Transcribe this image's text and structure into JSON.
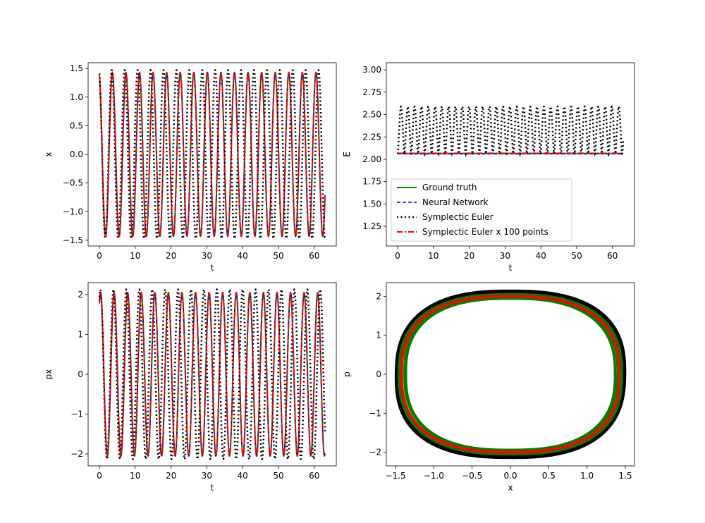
{
  "figure": {
    "background": "#ffffff"
  },
  "colors": {
    "ground_truth": "#008000",
    "neural_network": "#0000ff",
    "symplectic_euler": "#000000",
    "symplectic_euler_100": "#ff0000"
  },
  "chart_data": [
    {
      "id": "x-vs-t",
      "type": "line",
      "xlabel": "t",
      "ylabel": "x",
      "xlim": [
        -3.15,
        66.15
      ],
      "ylim": [
        -1.6,
        1.6
      ],
      "xticks": [
        0,
        10,
        20,
        30,
        40,
        50,
        60
      ],
      "yticks": [
        -1.5,
        -1.0,
        -0.5,
        0.0,
        0.5,
        1.0,
        1.5
      ],
      "ytick_labels": [
        "−1.5",
        "−1.0",
        "−0.5",
        "0.0",
        "0.5",
        "1.0",
        "1.5"
      ],
      "series": [
        {
          "name": "Ground truth",
          "style": "solid",
          "color": "#008000",
          "amplitude": 1.43,
          "period": 3.79,
          "phase": 0.28,
          "t_start": 0,
          "t_end": 63
        },
        {
          "name": "Neural Network",
          "style": "dashed",
          "color": "#0000ff",
          "amplitude": 1.43,
          "period": 3.79,
          "phase": 0.28,
          "t_start": 0,
          "t_end": 63
        },
        {
          "name": "Symplectic Euler",
          "style": "dotted",
          "color": "#000000",
          "amplitude": 1.47,
          "period": 3.61,
          "phase": 0.28,
          "t_start": 0,
          "t_end": 63
        },
        {
          "name": "Symplectic Euler x 100 points",
          "style": "dashdot",
          "color": "#ff0000",
          "amplitude": 1.43,
          "period": 3.79,
          "phase": 0.28,
          "t_start": 0,
          "t_end": 63
        }
      ]
    },
    {
      "id": "energy-vs-t",
      "type": "line",
      "xlabel": "t",
      "ylabel": "E",
      "xlim": [
        -3.15,
        66.15
      ],
      "ylim": [
        1.03,
        3.08
      ],
      "xticks": [
        0,
        10,
        20,
        30,
        40,
        50,
        60
      ],
      "yticks": [
        1.25,
        1.5,
        1.75,
        2.0,
        2.25,
        2.5,
        2.75,
        3.0
      ],
      "ytick_labels": [
        "1.25",
        "1.50",
        "1.75",
        "2.00",
        "2.25",
        "2.50",
        "2.75",
        "3.00"
      ],
      "legend": {
        "placement": "lower-left"
      },
      "series": [
        {
          "name": "Ground truth",
          "style": "solid",
          "color": "#008000",
          "kind": "constant",
          "value": 2.065,
          "t_start": 0,
          "t_end": 63
        },
        {
          "name": "Neural Network",
          "style": "dashed",
          "color": "#0000ff",
          "kind": "constant",
          "value": 2.06,
          "t_start": 0,
          "t_end": 63
        },
        {
          "name": "Symplectic Euler",
          "style": "dotted",
          "color": "#000000",
          "kind": "oscillating",
          "min": 2.06,
          "max": 2.59,
          "period": 1.9,
          "t_start": 0,
          "t_end": 63
        },
        {
          "name": "Symplectic Euler x 100 points",
          "style": "dashdot",
          "color": "#ff0000",
          "kind": "constant",
          "value": 2.068,
          "t_start": 0,
          "t_end": 63
        }
      ]
    },
    {
      "id": "px-vs-t",
      "type": "line",
      "xlabel": "t",
      "ylabel": "px",
      "xlim": [
        -3.15,
        66.15
      ],
      "ylim": [
        -2.3,
        2.3
      ],
      "xticks": [
        0,
        10,
        20,
        30,
        40,
        50,
        60
      ],
      "yticks": [
        -2,
        -1,
        0,
        1,
        2
      ],
      "ytick_labels": [
        "−2",
        "−1",
        "0",
        "1",
        "2"
      ],
      "series": [
        {
          "name": "Ground truth",
          "style": "solid",
          "color": "#008000",
          "amplitude": 2.05,
          "period": 3.79,
          "phase": 0.28,
          "t_start": 0,
          "t_end": 63
        },
        {
          "name": "Neural Network",
          "style": "dashed",
          "color": "#0000ff",
          "amplitude": 2.05,
          "period": 3.79,
          "phase": 0.28,
          "t_start": 0,
          "t_end": 63
        },
        {
          "name": "Symplectic Euler",
          "style": "dotted",
          "color": "#000000",
          "amplitude": 2.13,
          "period": 3.61,
          "phase": 0.28,
          "t_start": 0,
          "t_end": 63
        },
        {
          "name": "Symplectic Euler x 100 points",
          "style": "dashdot",
          "color": "#ff0000",
          "amplitude": 2.05,
          "period": 3.79,
          "phase": 0.28,
          "t_start": 0,
          "t_end": 63
        }
      ]
    },
    {
      "id": "phase-portrait",
      "type": "line",
      "xlabel": "x",
      "ylabel": "p",
      "xlim": [
        -1.62,
        1.62
      ],
      "ylim": [
        -2.35,
        2.35
      ],
      "xticks": [
        -1.5,
        -1.0,
        -0.5,
        0.0,
        0.5,
        1.0,
        1.5
      ],
      "xtick_labels": [
        "−1.5",
        "−1.0",
        "−0.5",
        "0.0",
        "0.5",
        "1.0",
        "1.5"
      ],
      "yticks": [
        -2,
        -1,
        0,
        1,
        2
      ],
      "ytick_labels": [
        "−2",
        "−1",
        "0",
        "1",
        "2"
      ],
      "series": [
        {
          "name": "Symplectic Euler",
          "style": "solid",
          "color": "#000000",
          "kind": "loop-band",
          "rx": [
            1.43,
            1.5
          ],
          "ry": [
            2.05,
            2.15
          ],
          "shift": 0.03
        },
        {
          "name": "Ground truth",
          "style": "solid",
          "color": "#008000",
          "kind": "loop-band",
          "rx": [
            1.36,
            1.46
          ],
          "ry": [
            1.93,
            2.06
          ],
          "shift": 0.0
        },
        {
          "name": "Symplectic Euler x 100 points",
          "style": "solid",
          "color": "#ff0000",
          "kind": "loop",
          "rx": [
            1.42,
            1.42
          ],
          "ry": [
            2.0,
            2.0
          ],
          "shift": 0.0
        }
      ]
    }
  ]
}
